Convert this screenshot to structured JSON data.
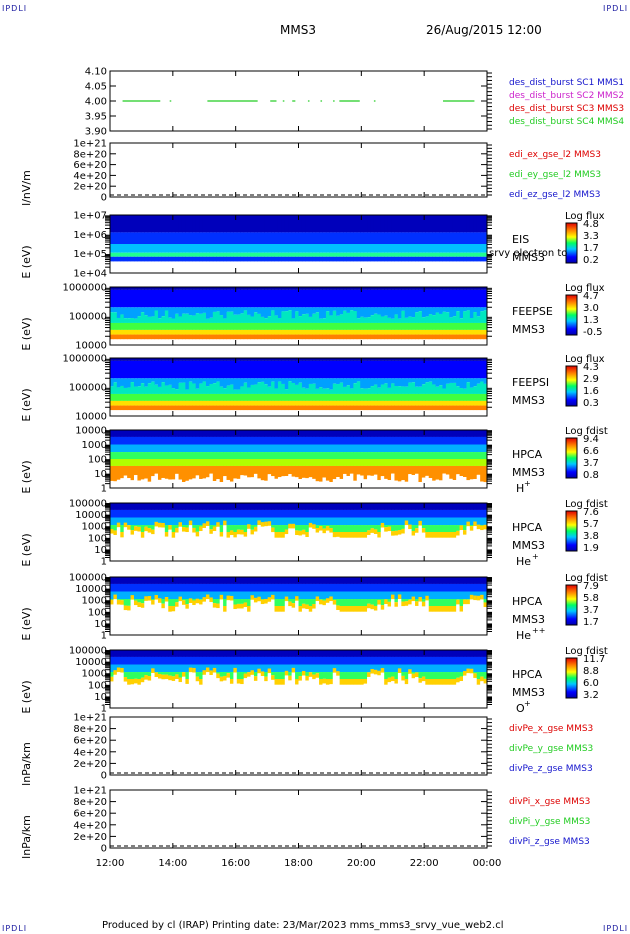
{
  "corner_label": "IPDLI",
  "header": {
    "spacecraft": "MMS3",
    "datetime": "26/Aug/2015 12:00"
  },
  "footer": {
    "text": "Produced by cl (IRAP)   Printing date: 23/Mar/2023   mms_mms3_srvy_vue_web2.cl"
  },
  "colors": {
    "red": "#dd0000",
    "green": "#22cc22",
    "blue": "#1414cc",
    "magenta": "#cc22cc"
  },
  "chart_data": [
    {
      "type": "line",
      "ylim": [
        3.9,
        4.1
      ],
      "yticks": [
        "4.10",
        "4.05",
        "4.00",
        "3.95",
        "3.90"
      ],
      "ytick_values": [
        4.1,
        4.05,
        4.0,
        3.95,
        3.9
      ],
      "legend": [
        {
          "name": "des_dist_burst SC1 MMS1",
          "color": "#1414cc"
        },
        {
          "name": "des_dist_burst SC2 MMS2",
          "color": "#cc22cc"
        },
        {
          "name": "des_dist_burst SC3 MMS3",
          "color": "#dd0000"
        },
        {
          "name": "des_dist_burst SC4 MMS4",
          "color": "#22cc22"
        }
      ],
      "segments_hours": [
        [
          12.4,
          13.6
        ],
        [
          13.9,
          13.95
        ],
        [
          15.1,
          16.7
        ],
        [
          17.1,
          17.3
        ],
        [
          17.5,
          17.55
        ],
        [
          17.8,
          17.9
        ],
        [
          18.3,
          18.35
        ],
        [
          18.7,
          18.75
        ],
        [
          19.1,
          19.15
        ],
        [
          19.3,
          19.95
        ],
        [
          20.4,
          20.45
        ],
        [
          22.6,
          23.6
        ]
      ],
      "segment_value": 4.0
    },
    {
      "type": "line",
      "ylabel": "l/nV/m",
      "yticks": [
        "1e+21",
        "8e+20",
        "6e+20",
        "4e+20",
        "2e+20",
        "0"
      ],
      "ytick_values": [
        1e+21,
        8e+20,
        6e+20,
        4e+20,
        2e+20,
        0
      ],
      "legend": [
        {
          "name": "edi_ex_gse_l2 MMS3",
          "color": "#dd0000"
        },
        {
          "name": "edi_ey_gse_l2 MMS3",
          "color": "#22cc22"
        },
        {
          "name": "edi_ez_gse_l2 MMS3",
          "color": "#1414cc"
        }
      ]
    },
    {
      "type": "heatmap",
      "ylabel": "E (eV)",
      "yticks": [
        "1e+07",
        "1e+06",
        "1e+05",
        "1e+04"
      ],
      "instrument": [
        "EIS",
        "MMS3"
      ],
      "overflow_label": "srvy electron to",
      "colorbar": {
        "title": "Log flux",
        "ticks": [
          "4.8",
          "3.3",
          "1.7",
          "0.2"
        ]
      }
    },
    {
      "type": "heatmap",
      "ylabel": "E (eV)",
      "yticks": [
        "1000000",
        "100000",
        "10000"
      ],
      "instrument": [
        "FEEPSE",
        "MMS3"
      ],
      "colorbar": {
        "title": "Log flux",
        "ticks": [
          "4.7",
          "3.0",
          "1.3",
          "-0.5"
        ]
      }
    },
    {
      "type": "heatmap",
      "ylabel": "E (eV)",
      "yticks": [
        "1000000",
        "100000",
        "10000"
      ],
      "instrument": [
        "FEEPSI",
        "MMS3"
      ],
      "colorbar": {
        "title": "Log flux",
        "ticks": [
          "4.3",
          "2.9",
          "1.6",
          "0.3"
        ]
      }
    },
    {
      "type": "heatmap",
      "ylabel": "E (eV)",
      "yticks": [
        "10000",
        "1000",
        "100",
        "10",
        "1"
      ],
      "instrument": [
        "HPCA",
        "MMS3"
      ],
      "species": "H",
      "charge": "+",
      "colorbar": {
        "title": "Log fdist",
        "ticks": [
          "9.4",
          "6.6",
          "3.7",
          "0.8"
        ]
      }
    },
    {
      "type": "heatmap",
      "ylabel": "E (eV)",
      "yticks": [
        "100000",
        "10000",
        "1000",
        "100",
        "10",
        "1"
      ],
      "instrument": [
        "HPCA",
        "MMS3"
      ],
      "species": "He",
      "charge": "+",
      "colorbar": {
        "title": "Log fdist",
        "ticks": [
          "7.6",
          "5.7",
          "3.8",
          "1.9"
        ]
      }
    },
    {
      "type": "heatmap",
      "ylabel": "E (eV)",
      "yticks": [
        "100000",
        "10000",
        "1000",
        "100",
        "10",
        "1"
      ],
      "instrument": [
        "HPCA",
        "MMS3"
      ],
      "species": "He",
      "charge": "++",
      "colorbar": {
        "title": "Log fdist",
        "ticks": [
          "7.9",
          "5.8",
          "3.7",
          "1.7"
        ]
      }
    },
    {
      "type": "heatmap",
      "ylabel": "E (eV)",
      "yticks": [
        "100000",
        "10000",
        "1000",
        "100",
        "10",
        "1"
      ],
      "instrument": [
        "HPCA",
        "MMS3"
      ],
      "species": "O",
      "charge": "+",
      "colorbar": {
        "title": "Log fdist",
        "ticks": [
          "11.7",
          "8.8",
          "6.0",
          "3.2"
        ]
      }
    },
    {
      "type": "line",
      "ylabel": "lnPa/km",
      "yticks": [
        "1e+21",
        "8e+20",
        "6e+20",
        "4e+20",
        "2e+20",
        "0"
      ],
      "legend": [
        {
          "name": "divPe_x_gse MMS3",
          "color": "#dd0000"
        },
        {
          "name": "divPe_y_gse MMS3",
          "color": "#22cc22"
        },
        {
          "name": "divPe_z_gse MMS3",
          "color": "#1414cc"
        }
      ]
    },
    {
      "type": "line",
      "ylabel": "lnPa/km",
      "yticks": [
        "1e+21",
        "8e+20",
        "6e+20",
        "4e+20",
        "2e+20",
        "0"
      ],
      "legend": [
        {
          "name": "divPi_x_gse MMS3",
          "color": "#dd0000"
        },
        {
          "name": "divPi_y_gse MMS3",
          "color": "#22cc22"
        },
        {
          "name": "divPi_z_gse MMS3",
          "color": "#1414cc"
        }
      ]
    }
  ],
  "time_axis": {
    "ticks": [
      "12:00",
      "14:00",
      "16:00",
      "18:00",
      "20:00",
      "22:00",
      "00:00"
    ],
    "hours": [
      12,
      14,
      16,
      18,
      20,
      22,
      24
    ]
  }
}
